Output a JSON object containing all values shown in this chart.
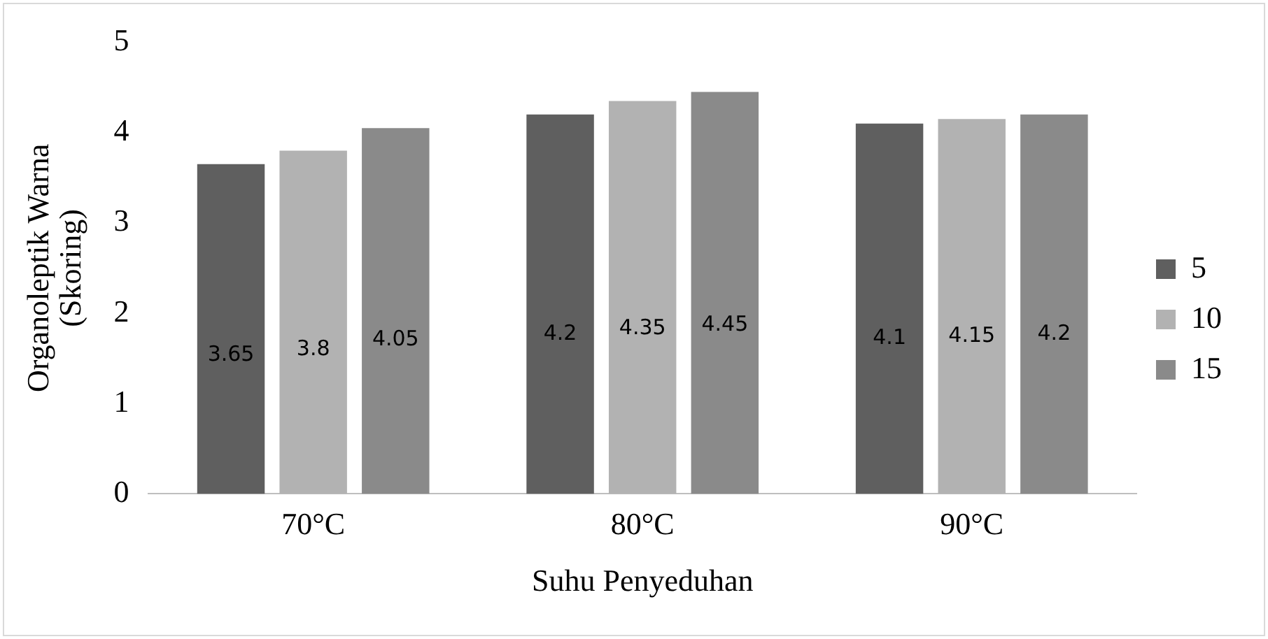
{
  "chart_data": {
    "type": "bar",
    "xlabel": "Suhu Penyeduhan",
    "ylabel": "Organoleptik Warna\n(Skoring)",
    "categories": [
      "70°C",
      "80°C",
      "90°C"
    ],
    "series": [
      {
        "name": "5",
        "color": "#5f5f5f",
        "values": [
          3.65,
          4.2,
          4.1
        ]
      },
      {
        "name": "10",
        "color": "#b2b2b2",
        "values": [
          3.8,
          4.35,
          4.15
        ]
      },
      {
        "name": "15",
        "color": "#8a8a8a",
        "values": [
          4.05,
          4.45,
          4.2
        ]
      }
    ],
    "ylim": [
      0,
      5
    ],
    "yticks": [
      0,
      1,
      2,
      3,
      4,
      5
    ],
    "grid": false,
    "legend": "right",
    "data_labels": true
  }
}
